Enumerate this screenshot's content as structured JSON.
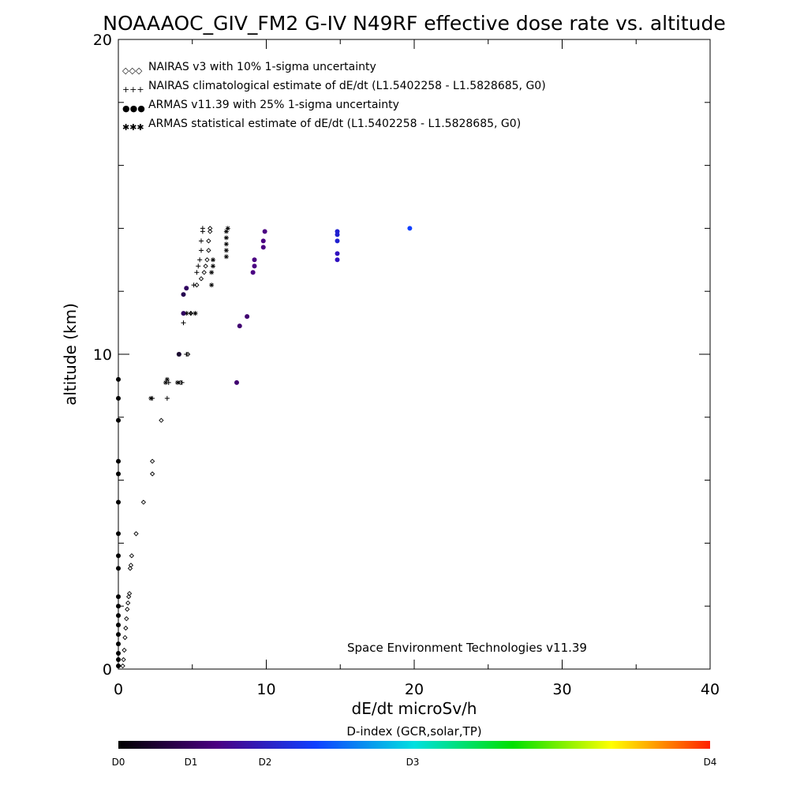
{
  "chart_data": {
    "type": "scatter",
    "title": "NOAAAOC_GIV_FM2 G-IV   N49RF  effective dose rate vs. altitude",
    "xlabel": "dE/dt microSv/h",
    "ylabel": "altitude (km)",
    "xlim": [
      0,
      40
    ],
    "ylim": [
      0,
      20
    ],
    "x_ticks": [
      0,
      10,
      20,
      30,
      40
    ],
    "y_ticks": [
      0,
      10,
      20
    ],
    "grid": false,
    "legend_position": "top-left",
    "footer": "Space Environment Technologies v11.39",
    "legend": [
      {
        "symbol": "◇◇◇",
        "label": "NAIRAS v3 with 10% 1-sigma uncertainty"
      },
      {
        "symbol": "+++",
        "label": "NAIRAS climatological estimate of dE/dt (L1.5402258 - L1.5828685, G0)"
      },
      {
        "symbol": "●●●",
        "label": "ARMAS v11.39 with 25% 1-sigma uncertainty"
      },
      {
        "symbol": "✱✱✱",
        "label": "ARMAS statistical estimate of dE/dt (L1.5402258 - L1.5828685, G0)"
      }
    ],
    "colorbar": {
      "title": "D-index (GCR,solar,TP)",
      "labels": [
        "D0",
        "D1",
        "D2",
        "D3",
        "D4"
      ],
      "colors": [
        "#000000",
        "#4b0082",
        "#1040ff",
        "#00e0e0",
        "#00e000",
        "#ffff00",
        "#ff2000"
      ]
    },
    "series": [
      {
        "marker": "diamond",
        "color": "#000000",
        "points": [
          [
            0.3,
            0.1
          ],
          [
            0.35,
            0.3
          ],
          [
            0.4,
            0.6
          ],
          [
            0.45,
            1.0
          ],
          [
            0.5,
            1.3
          ],
          [
            0.55,
            1.6
          ],
          [
            0.6,
            1.9
          ],
          [
            0.65,
            2.1
          ],
          [
            0.7,
            2.3
          ],
          [
            0.75,
            2.4
          ],
          [
            0.8,
            3.2
          ],
          [
            0.85,
            3.3
          ],
          [
            0.9,
            3.6
          ],
          [
            1.2,
            4.3
          ],
          [
            1.7,
            5.3
          ],
          [
            2.3,
            6.2
          ],
          [
            2.3,
            6.6
          ],
          [
            2.9,
            7.9
          ],
          [
            4.2,
            9.1
          ],
          [
            4.7,
            10.0
          ],
          [
            4.9,
            11.3
          ],
          [
            5.3,
            12.2
          ],
          [
            5.6,
            12.4
          ],
          [
            5.8,
            12.6
          ],
          [
            5.9,
            12.8
          ],
          [
            6.0,
            13.0
          ],
          [
            6.1,
            13.3
          ],
          [
            6.1,
            13.6
          ],
          [
            6.2,
            13.9
          ],
          [
            6.2,
            14.0
          ]
        ]
      },
      {
        "marker": "plus",
        "color": "#000000",
        "points": [
          [
            2.3,
            8.6
          ],
          [
            3.3,
            8.6
          ],
          [
            3.4,
            9.1
          ],
          [
            4.3,
            9.1
          ],
          [
            4.6,
            10.0
          ],
          [
            4.4,
            11.0
          ],
          [
            4.9,
            11.3
          ],
          [
            5.1,
            12.2
          ],
          [
            5.3,
            12.6
          ],
          [
            5.4,
            12.8
          ],
          [
            5.5,
            13.0
          ],
          [
            5.6,
            13.3
          ],
          [
            5.6,
            13.6
          ],
          [
            5.7,
            13.9
          ],
          [
            5.7,
            14.0
          ]
        ]
      },
      {
        "marker": "asterisk",
        "color": "#000000",
        "points": [
          [
            2.2,
            8.6
          ],
          [
            3.2,
            9.1
          ],
          [
            3.3,
            9.2
          ],
          [
            4.0,
            9.1
          ],
          [
            4.1,
            10.0
          ],
          [
            4.6,
            11.3
          ],
          [
            5.2,
            11.3
          ],
          [
            6.3,
            12.2
          ],
          [
            6.3,
            12.6
          ],
          [
            6.4,
            12.8
          ],
          [
            6.4,
            13.0
          ],
          [
            7.3,
            13.1
          ],
          [
            7.3,
            13.3
          ],
          [
            7.3,
            13.5
          ],
          [
            7.3,
            13.7
          ],
          [
            7.3,
            13.9
          ],
          [
            7.4,
            14.0
          ]
        ]
      },
      {
        "marker": "dot",
        "points": [
          [
            0.0,
            0.1,
            "#000000"
          ],
          [
            0.0,
            0.3,
            "#000000"
          ],
          [
            0.0,
            0.5,
            "#000000"
          ],
          [
            0.0,
            0.8,
            "#000000"
          ],
          [
            0.0,
            1.1,
            "#000000"
          ],
          [
            0.0,
            1.4,
            "#000000"
          ],
          [
            0.0,
            1.7,
            "#000000"
          ],
          [
            0.0,
            2.0,
            "#000000"
          ],
          [
            0.0,
            2.3,
            "#000000"
          ],
          [
            0.0,
            3.2,
            "#000000"
          ],
          [
            0.0,
            3.6,
            "#000000"
          ],
          [
            0.0,
            4.3,
            "#000000"
          ],
          [
            0.0,
            5.3,
            "#000000"
          ],
          [
            0.0,
            6.2,
            "#000000"
          ],
          [
            0.0,
            6.6,
            "#000000"
          ],
          [
            0.0,
            7.9,
            "#000000"
          ],
          [
            0.0,
            8.6,
            "#000000"
          ],
          [
            0.0,
            9.2,
            "#000000"
          ],
          [
            4.1,
            10.0,
            "#1a0a30"
          ],
          [
            4.4,
            11.3,
            "#300060"
          ],
          [
            4.4,
            11.9,
            "#250050"
          ],
          [
            4.6,
            12.1,
            "#300060"
          ],
          [
            8.0,
            9.1,
            "#400070"
          ],
          [
            8.2,
            10.9,
            "#400070"
          ],
          [
            8.7,
            11.2,
            "#400070"
          ],
          [
            9.1,
            12.6,
            "#4b0082"
          ],
          [
            9.2,
            12.8,
            "#4b0082"
          ],
          [
            9.2,
            13.0,
            "#4b0082"
          ],
          [
            9.8,
            13.4,
            "#4b0082"
          ],
          [
            9.8,
            13.6,
            "#4b0082"
          ],
          [
            9.9,
            13.9,
            "#4b0082"
          ],
          [
            14.8,
            13.0,
            "#3010c0"
          ],
          [
            14.8,
            13.2,
            "#3010c0"
          ],
          [
            14.8,
            13.6,
            "#2020d0"
          ],
          [
            14.8,
            13.8,
            "#2020d0"
          ],
          [
            14.8,
            13.9,
            "#2020d0"
          ],
          [
            19.7,
            14.0,
            "#1040ff"
          ]
        ]
      }
    ]
  }
}
